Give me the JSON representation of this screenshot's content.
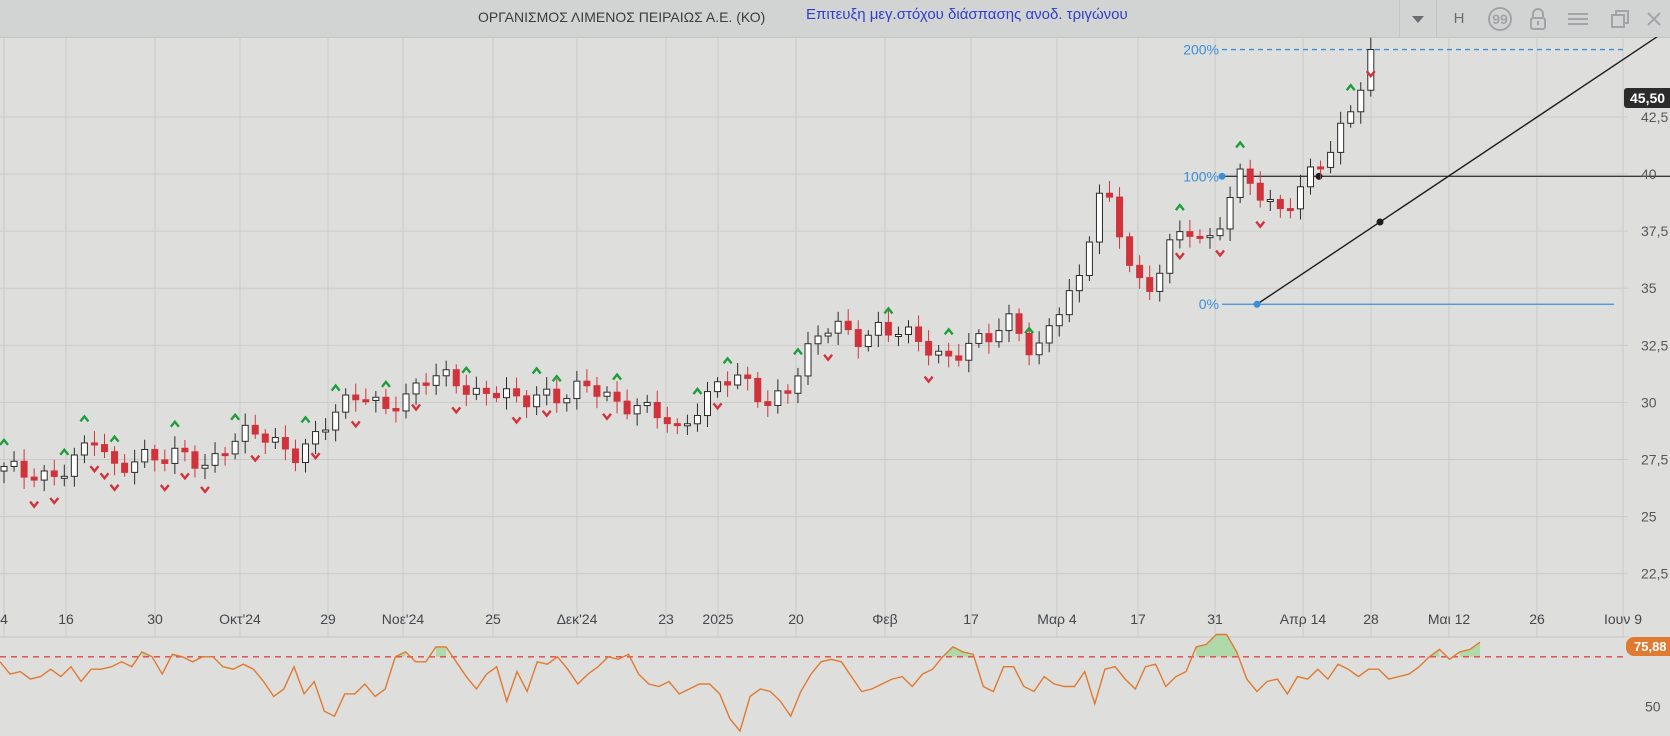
{
  "header": {
    "instrument": "ΟΡΓΑΝΙΣΜΟΣ ΛΙΜΕΝΟΣ ΠΕΙΡΑΙΩΣ Α.Ε. (ΚΟ)",
    "signal": "Επιτευξη μεγ.στόχου διάσπασης ανοδ. τριγώνου",
    "interval_label": "H",
    "icons": [
      "chevron-down-icon",
      "quote-icon",
      "lock-icon",
      "menu-icon",
      "restore-icon",
      "close-icon"
    ]
  },
  "colors": {
    "up": "#ffffff",
    "down": "#d1333b",
    "fib": "#3b8fd9",
    "indicator": "#e07a30",
    "threshold": "#e04545",
    "pivot_high": "#1f9d3a",
    "pivot_low": "#d1333b"
  },
  "chart_data": {
    "type": "candlestick",
    "price_axis": {
      "ticks": [
        "22,5",
        "25",
        "27,5",
        "30",
        "32,5",
        "35",
        "37,5",
        "40",
        "42,5"
      ],
      "ylim": [
        21.7,
        46.0
      ]
    },
    "time_axis": {
      "ticks": [
        "4",
        "16",
        "30",
        "Οκτ'24",
        "29",
        "Νοε'24",
        "25",
        "Δεκ'24",
        "23",
        "2025",
        "20",
        "Φεβ",
        "17",
        "Μαρ 4",
        "17",
        "31",
        "Απρ 14",
        "28",
        "Μαι 12",
        "26",
        "Ιουν 9"
      ]
    },
    "last_price": "45,50",
    "fibonacci": [
      {
        "label": "200%",
        "value": 45.45
      },
      {
        "label": "100%",
        "value": 39.9
      },
      {
        "label": "0%",
        "value": 34.3
      }
    ],
    "close_path": [
      27.0,
      26.8,
      26.9,
      27.3,
      28.3,
      27.0,
      27.9,
      27.4,
      27.6,
      27.3,
      28.3,
      28.6,
      28.2,
      27.9,
      28.6,
      29.6,
      30.5,
      29.9,
      30.1,
      31.0,
      31.3,
      30.4,
      30.3,
      30.0,
      30.6,
      30.2,
      30.6,
      30.2,
      30.0,
      29.6,
      28.5,
      29.9,
      31.2,
      30.8,
      29.8,
      30.8,
      32.5,
      33.3,
      32.8,
      33.4,
      33.0,
      32.4,
      32.0,
      32.6,
      32.7,
      33.6,
      32.2,
      34.0,
      35.1,
      39.8,
      37.0,
      34.3,
      36.8,
      37.8,
      37.0,
      39.8,
      39.2,
      38.5,
      39.6,
      40.5,
      42.6,
      45.45
    ],
    "pivot_highs": [
      0,
      6,
      8,
      11,
      17,
      23,
      30,
      33,
      38,
      46,
      53,
      55,
      61,
      69,
      72,
      79,
      88,
      94,
      102,
      117,
      123,
      134,
      136
    ],
    "pivot_lows": [
      3,
      5,
      9,
      10,
      11,
      16,
      18,
      20,
      25,
      31,
      35,
      41,
      45,
      51,
      54,
      60,
      71,
      82,
      92,
      117,
      121,
      125,
      136
    ],
    "indicator": {
      "level": "75,88",
      "axis_tick": "50",
      "threshold": 70,
      "ylim": [
        38,
        78
      ],
      "values": [
        68,
        63,
        64,
        61,
        62,
        65,
        62,
        66,
        60,
        65,
        65,
        66,
        68,
        66,
        72,
        70,
        63,
        71,
        70,
        68,
        70,
        70,
        66,
        65,
        67,
        65,
        60,
        54,
        57,
        66,
        55,
        60,
        48,
        46,
        55,
        55,
        59,
        54,
        57,
        70,
        72,
        68,
        68,
        74,
        74,
        68,
        62,
        57,
        63,
        66,
        52,
        64,
        56,
        68,
        67,
        70,
        65,
        59,
        63,
        66,
        70,
        69,
        71,
        63,
        59,
        58,
        60,
        55,
        57,
        59,
        59,
        55,
        45,
        40,
        54,
        57,
        56,
        52,
        46,
        56,
        63,
        68,
        69,
        68,
        62,
        56,
        57,
        59,
        61,
        62,
        58,
        63,
        65,
        70,
        74,
        72,
        71,
        58,
        56,
        66,
        66,
        58,
        56,
        62,
        59,
        58,
        58,
        64,
        51,
        65,
        66,
        61,
        57,
        66,
        67,
        58,
        62,
        64,
        74,
        75,
        79,
        79,
        72,
        61,
        56,
        60,
        61,
        55,
        62,
        61,
        65,
        61,
        67,
        65,
        62,
        65,
        65,
        61,
        62,
        63,
        66,
        70,
        73,
        69,
        72,
        73,
        75.9
      ]
    }
  }
}
